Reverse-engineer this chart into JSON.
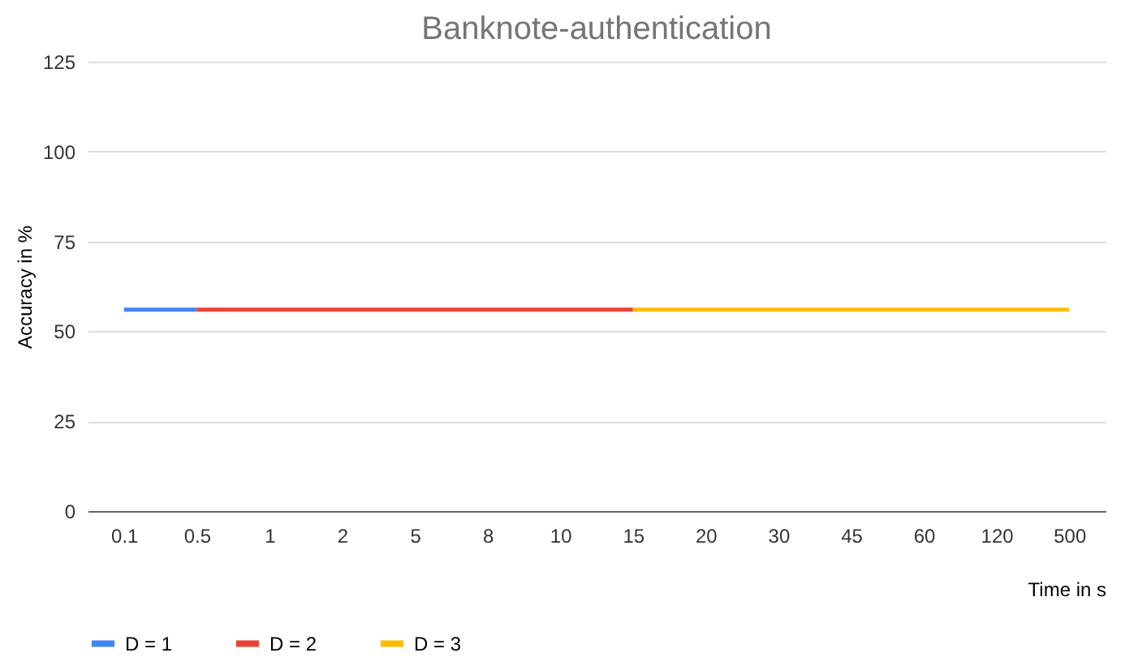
{
  "chart_data": {
    "type": "line",
    "title": "Banknote-authentication",
    "xlabel": "Time in s",
    "ylabel": "Accuracy in %",
    "categories": [
      "0.1",
      "0.5",
      "1",
      "2",
      "5",
      "8",
      "10",
      "15",
      "20",
      "30",
      "45",
      "60",
      "120",
      "500"
    ],
    "series": [
      {
        "name": "D = 1",
        "color": "#4285f4",
        "values": [
          56,
          56,
          null,
          null,
          null,
          null,
          null,
          null,
          null,
          null,
          null,
          null,
          null,
          null
        ]
      },
      {
        "name": "D = 2",
        "color": "#ea4335",
        "values": [
          null,
          56,
          56,
          56,
          56,
          56,
          56,
          56,
          null,
          null,
          null,
          null,
          null,
          null
        ]
      },
      {
        "name": "D = 3",
        "color": "#fbbc04",
        "values": [
          null,
          null,
          null,
          null,
          null,
          null,
          null,
          56,
          56,
          56,
          56,
          56,
          56,
          56
        ]
      }
    ],
    "ylim": [
      0,
      125
    ],
    "yticks": [
      0,
      25,
      50,
      75,
      100,
      125
    ],
    "grid": "y",
    "legend": "bottom",
    "marker": "none",
    "line_style": "solid"
  }
}
